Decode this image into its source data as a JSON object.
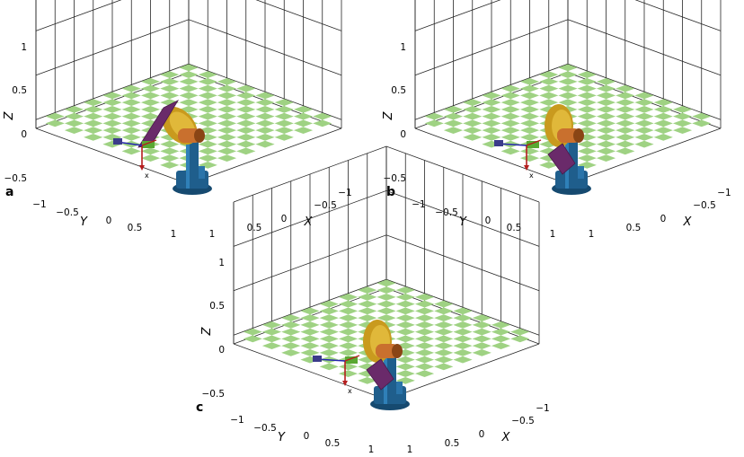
{
  "panels": [
    {
      "label": "a",
      "pose": "a"
    },
    {
      "label": "b",
      "pose": "b"
    },
    {
      "label": "c",
      "pose": "c"
    }
  ],
  "axes": {
    "x_label": "X",
    "y_label": "Y",
    "z_label": "Z",
    "x_ticks": [
      "−1",
      "−0.5",
      "0",
      "0.5",
      "1"
    ],
    "y_ticks": [
      "−1",
      "−0.5",
      "0",
      "0.5",
      "1"
    ],
    "z_ticks": [
      "1",
      "0.5",
      "0",
      "−0.5"
    ]
  },
  "frame_axis_label": "x",
  "colors": {
    "floor_tile": "#9fd283",
    "grid": "#262626",
    "base": "#1f5e8c",
    "shoulder": "#c99a1e",
    "elbow": "#c9702e",
    "forearm": "#6a2a6a",
    "wrist": "#5aa832",
    "frame_red": "#b51e1e",
    "frame_blue": "#2626b0"
  }
}
